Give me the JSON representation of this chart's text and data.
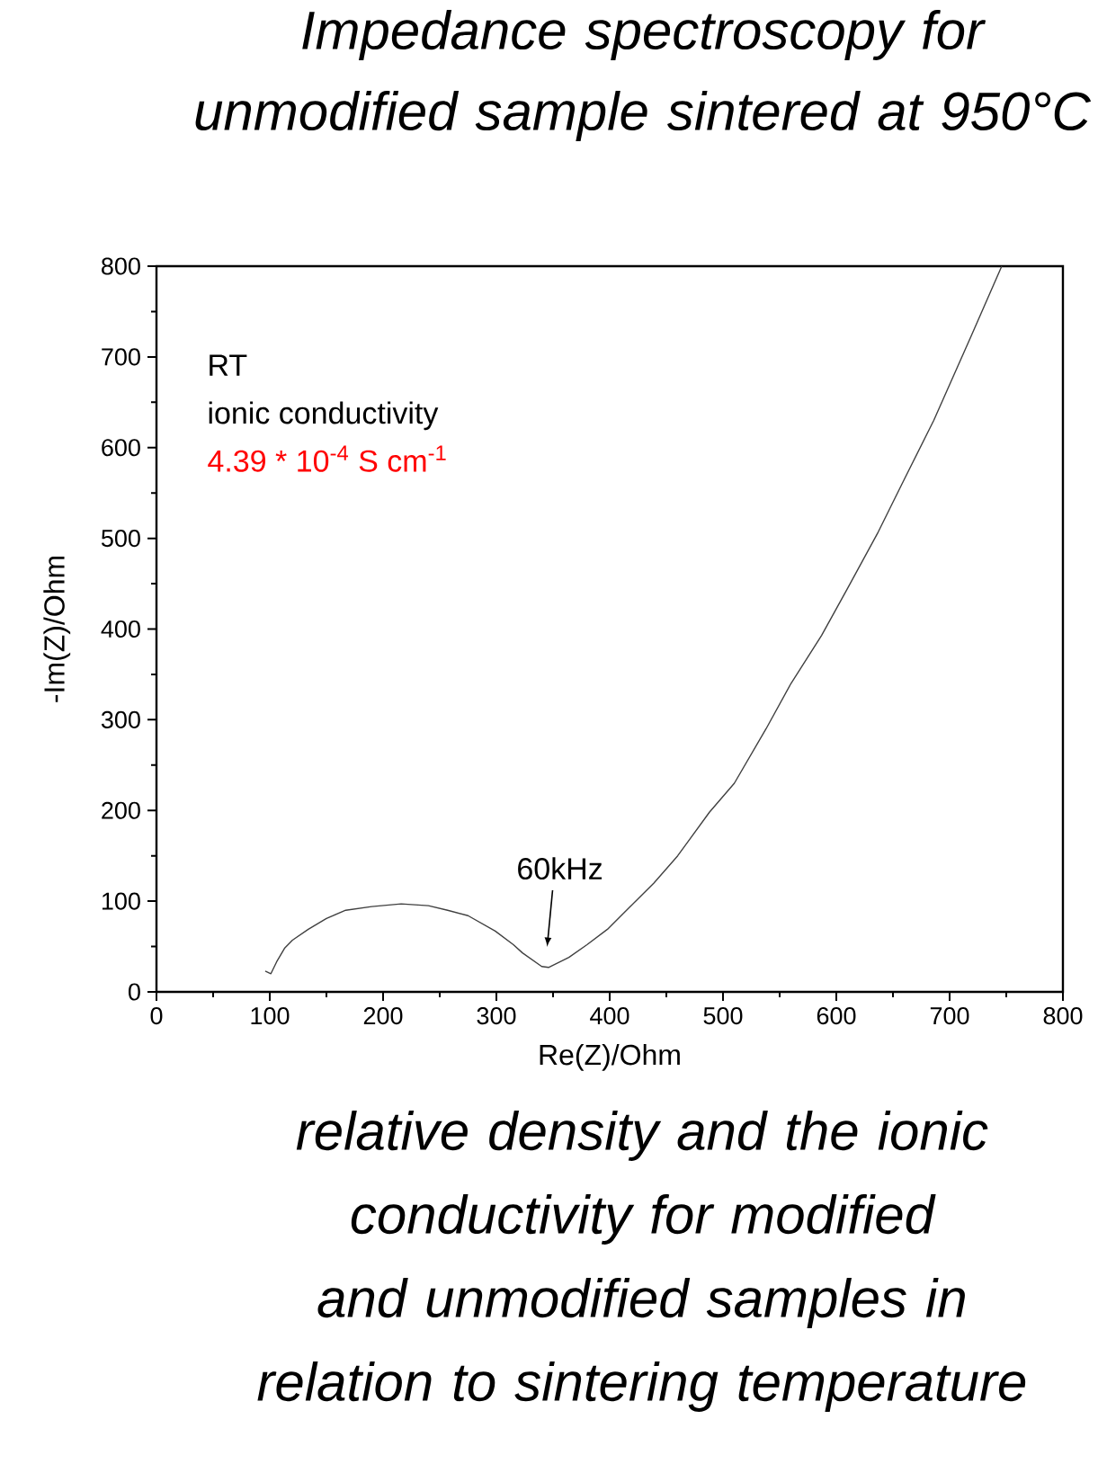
{
  "chart_data": {
    "type": "line",
    "title": "Impedance spectroscopy for unmodified sample sintered at 950°C",
    "xlabel": "Re(Z)/Ohm",
    "ylabel": "-Im(Z)/Ohm",
    "x": [
      96,
      101,
      106,
      113,
      120,
      134,
      150,
      167,
      190,
      216,
      240,
      257,
      275,
      299,
      315,
      323,
      340,
      346,
      364,
      380,
      398,
      439,
      460,
      488,
      510,
      538,
      560,
      587,
      610,
      637,
      660,
      686,
      719,
      746
    ],
    "values": [
      23,
      20,
      33,
      48,
      57,
      69,
      81,
      90,
      94,
      97,
      95,
      90,
      84,
      67,
      52,
      43,
      28,
      27,
      38,
      52,
      69,
      120,
      150,
      198,
      230,
      290,
      340,
      393,
      445,
      507,
      565,
      630,
      723,
      800
    ],
    "color": "#404040",
    "marker": "none",
    "line_style": "solid",
    "xlim": [
      0,
      800
    ],
    "ylim": [
      0,
      800
    ],
    "xticks": [
      0,
      100,
      200,
      300,
      400,
      500,
      600,
      700,
      800
    ],
    "yticks": [
      0,
      100,
      200,
      300,
      400,
      500,
      600,
      700,
      800
    ],
    "grid": false,
    "annotations": [
      "RT",
      "ionic conductivity",
      "4.39 * 10$^{-4}$ S cm$^{-1}$",
      "60kHz",
      "relative density and the ionic conductivity for modified and unmodified samples in relation to sintering temperature"
    ]
  }
}
